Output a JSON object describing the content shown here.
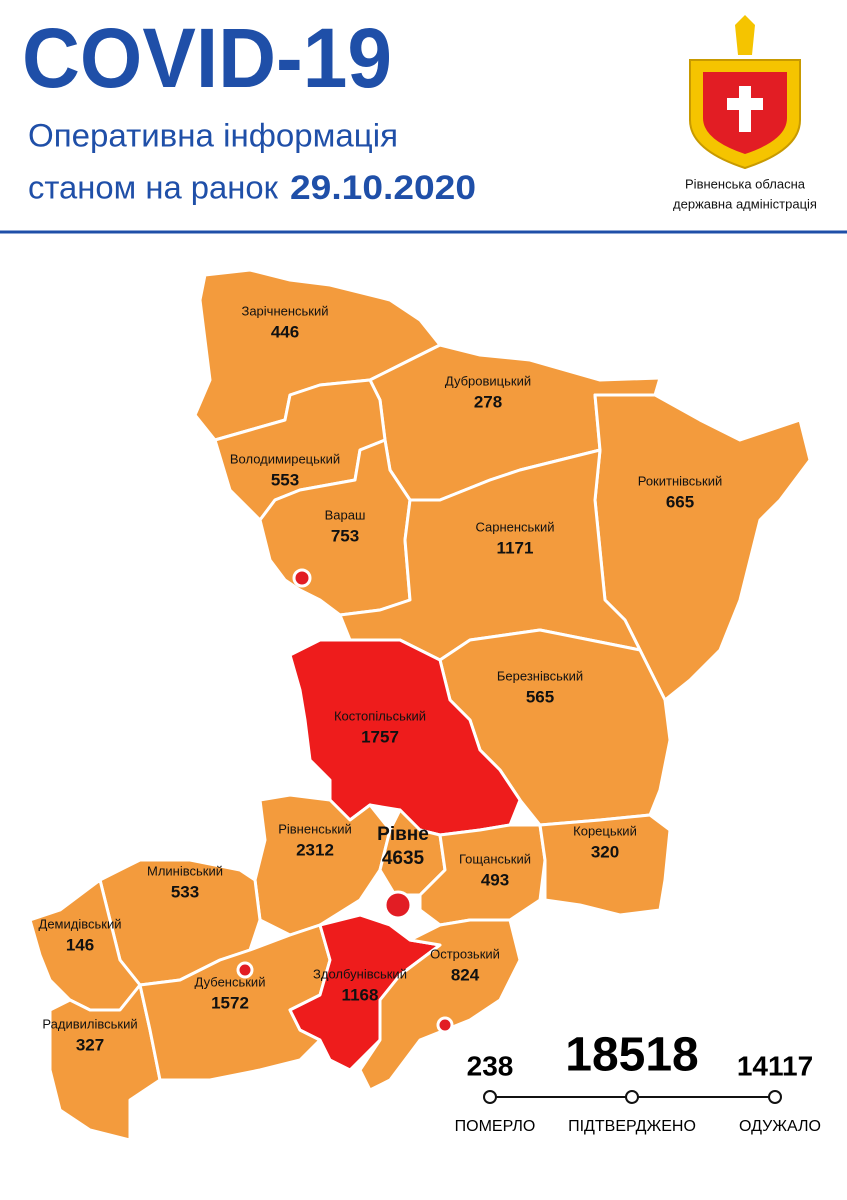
{
  "header": {
    "title": "COVID-19",
    "subtitle": "Оперативна інформація",
    "date_prefix": "станом на ранок",
    "date": "29.10.2020",
    "org_line1": "Рівненська обласна",
    "org_line2": "державна адміністрація"
  },
  "districts": [
    {
      "name": "Зарічненський",
      "value": 446,
      "color": "#f39b3d"
    },
    {
      "name": "Дубровицький",
      "value": 278,
      "color": "#f39b3d"
    },
    {
      "name": "Рокитнівський",
      "value": 665,
      "color": "#f39b3d"
    },
    {
      "name": "Володимирецький",
      "value": 553,
      "color": "#f39b3d"
    },
    {
      "name": "Вараш",
      "value": 753,
      "color": "#f39b3d"
    },
    {
      "name": "Сарненський",
      "value": 1171,
      "color": "#f39b3d"
    },
    {
      "name": "Березнівський",
      "value": 565,
      "color": "#f39b3d"
    },
    {
      "name": "Костопільський",
      "value": 1757,
      "color": "#ee1c1c"
    },
    {
      "name": "Рівненський",
      "value": 2312,
      "color": "#f39b3d"
    },
    {
      "name": "Рівне",
      "value": 4635,
      "color": "#f39b3d"
    },
    {
      "name": "Гощанський",
      "value": 493,
      "color": "#f39b3d"
    },
    {
      "name": "Корецький",
      "value": 320,
      "color": "#f39b3d"
    },
    {
      "name": "Млинівський",
      "value": 533,
      "color": "#f39b3d"
    },
    {
      "name": "Демидівський",
      "value": 146,
      "color": "#f39b3d"
    },
    {
      "name": "Радивилівський",
      "value": 327,
      "color": "#f39b3d"
    },
    {
      "name": "Дубенський",
      "value": 1572,
      "color": "#f39b3d"
    },
    {
      "name": "Здолбунівський",
      "value": 1168,
      "color": "#ee1c1c"
    },
    {
      "name": "Острозький",
      "value": 824,
      "color": "#f39b3d"
    }
  ],
  "summary": {
    "died": {
      "value": 238,
      "label": "ПОМЕРЛО"
    },
    "confirmed": {
      "value": 18518,
      "label": "ПІДТВЕРДЖЕНО"
    },
    "recovered": {
      "value": 14117,
      "label": "ОДУЖАЛО"
    }
  }
}
